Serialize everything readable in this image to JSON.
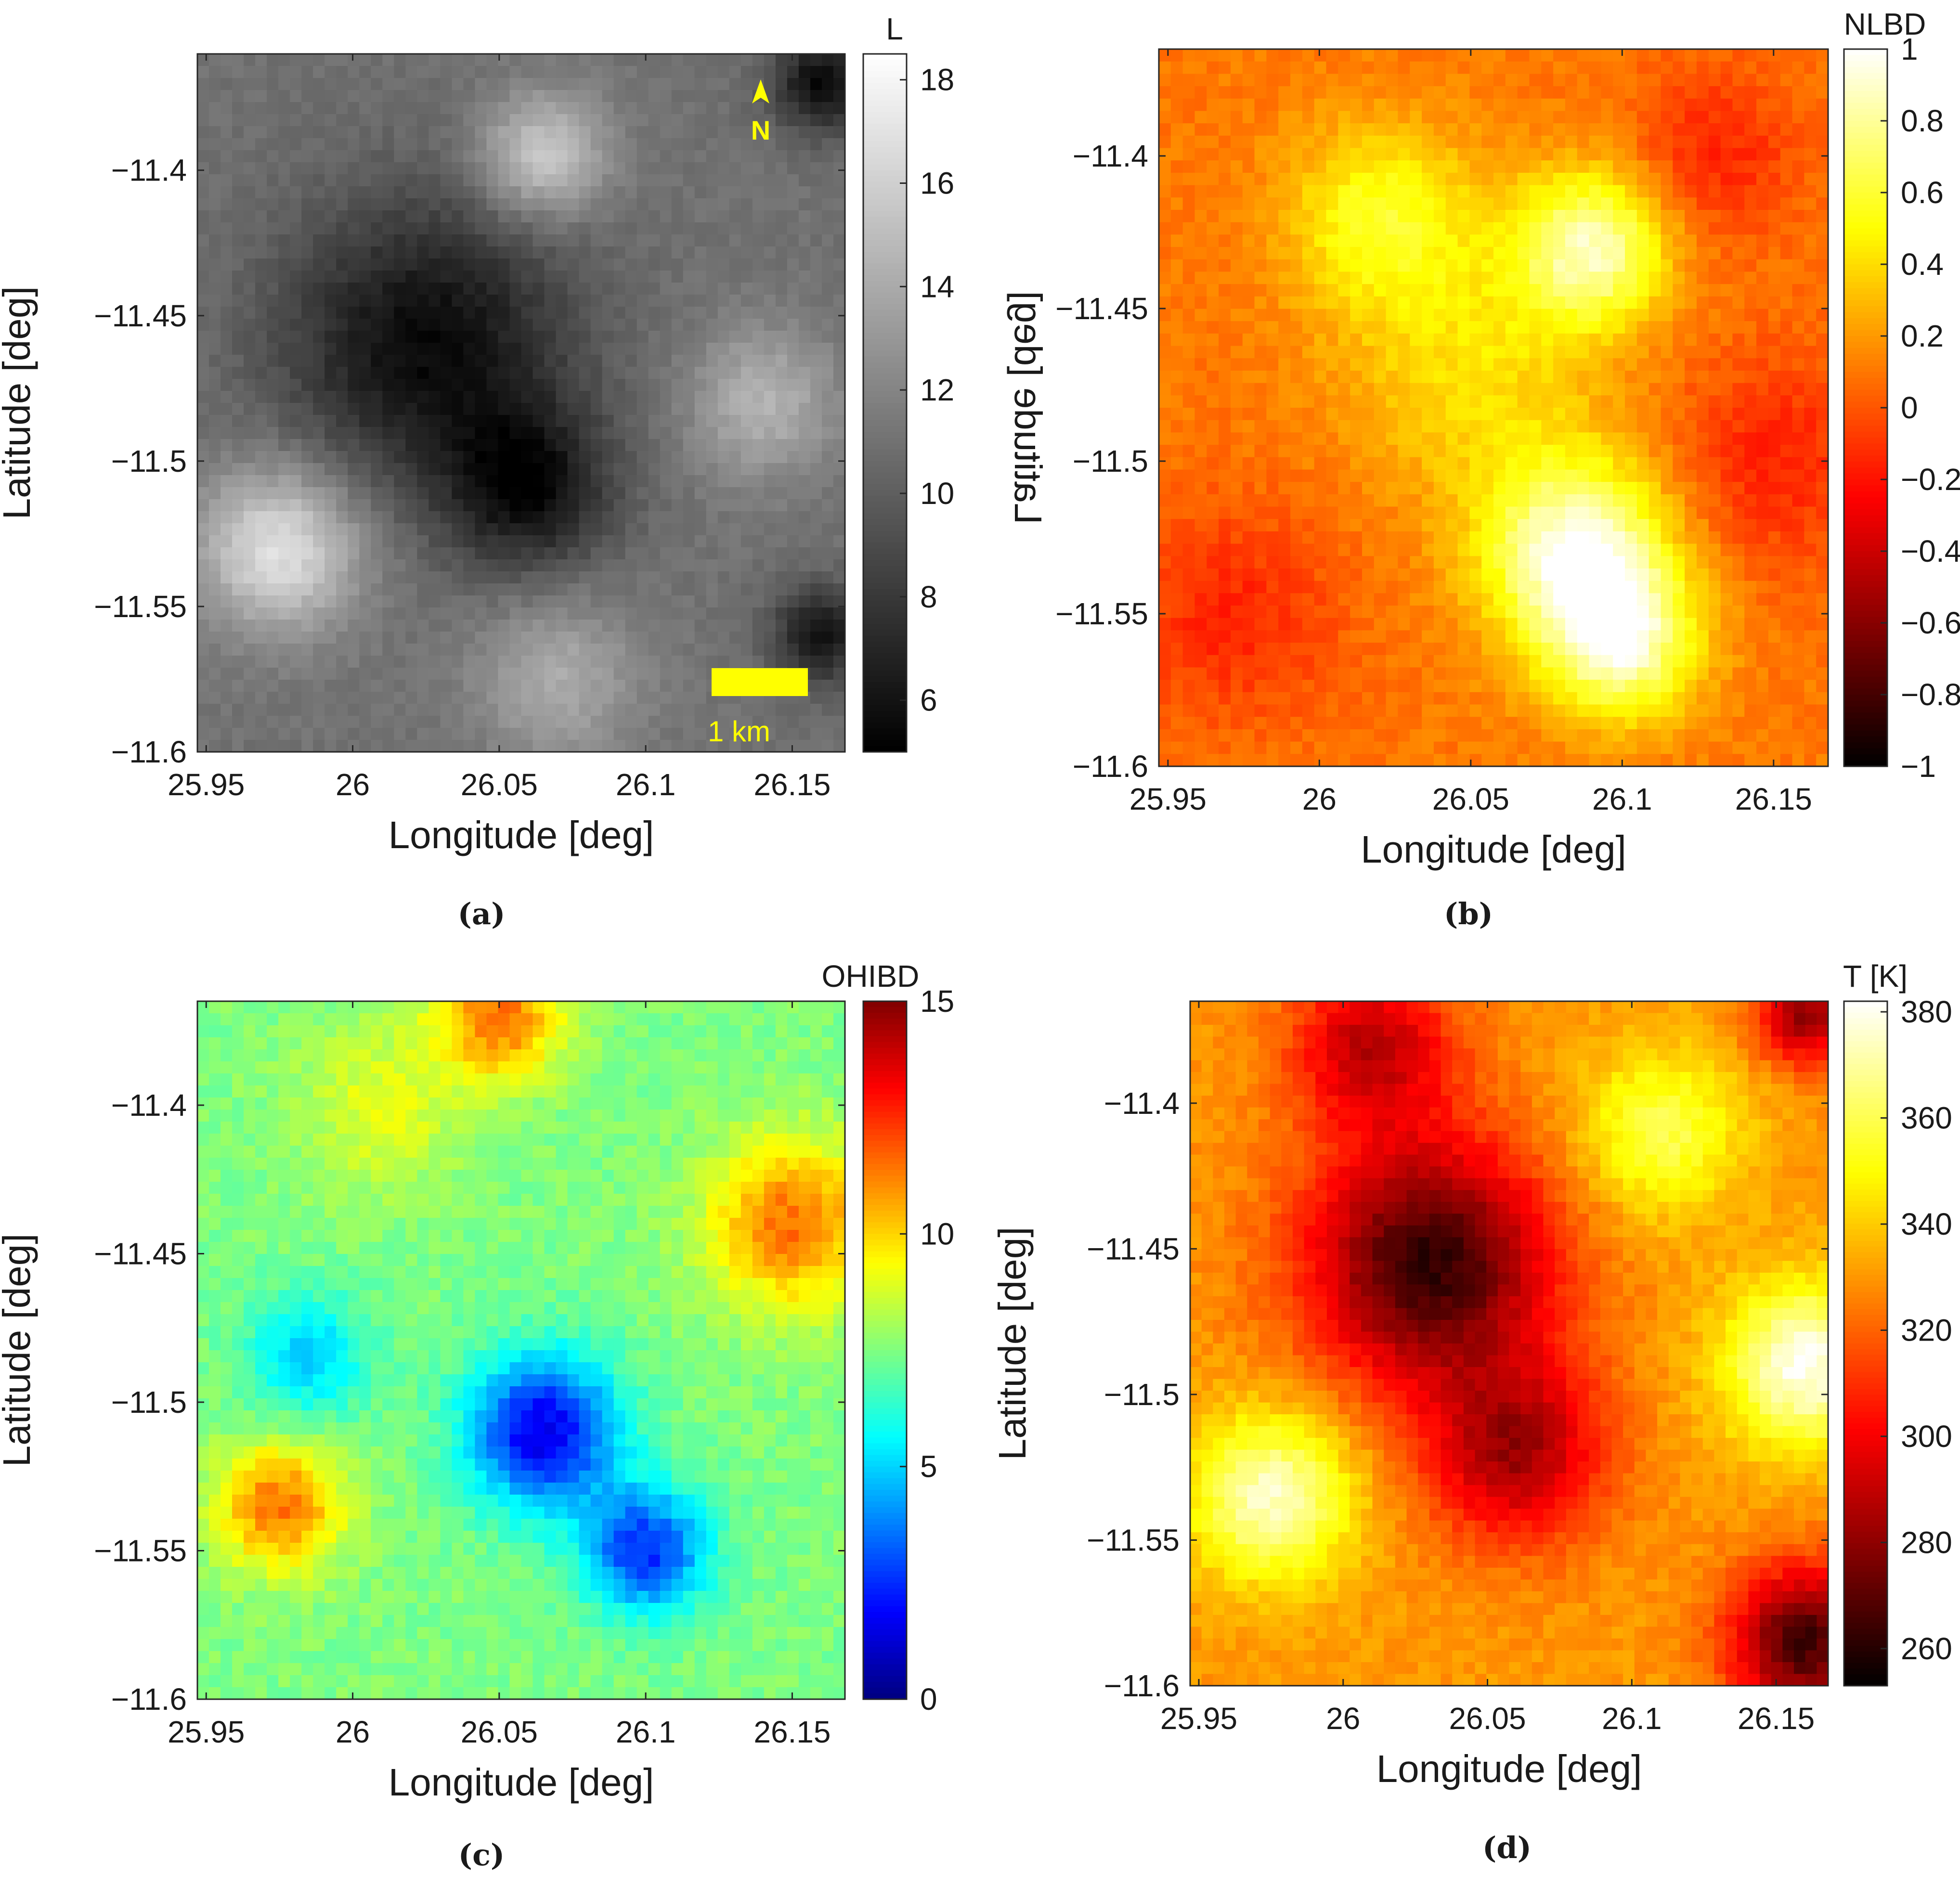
{
  "chart_data": [
    {
      "id": "a",
      "type": "heatmap",
      "subfigure_label": "(a)",
      "xlabel": "Longitude [deg]",
      "ylabel": "Latitude [deg]",
      "xlim": [
        25.947,
        26.168
      ],
      "ylim": [
        -11.6,
        -11.36
      ],
      "xticks": [
        25.95,
        26,
        26.05,
        26.1,
        26.15
      ],
      "xtick_labels": [
        "25.95",
        "26",
        "26.05",
        "26.1",
        "26.15"
      ],
      "yticks": [
        -11.4,
        -11.45,
        -11.5,
        -11.55,
        -11.6
      ],
      "ytick_labels": [
        "−11.4",
        "−11.45",
        "−11.5",
        "−11.55",
        "−11.6"
      ],
      "colorbar": {
        "title": "L",
        "colormap": "gray",
        "clim": [
          5,
          18.5
        ],
        "ticks": [
          6,
          8,
          10,
          12,
          14,
          16,
          18
        ],
        "tick_labels": [
          "6",
          "8",
          "10",
          "12",
          "14",
          "16",
          "18"
        ]
      },
      "features": [
        {
          "lon": 26.025,
          "lat": -11.46,
          "value": 5.5,
          "sigma": 0.035
        },
        {
          "lon": 26.06,
          "lat": -11.51,
          "value": 6.0,
          "sigma": 0.02
        },
        {
          "lon": 25.975,
          "lat": -11.53,
          "value": 17.0,
          "sigma": 0.02
        },
        {
          "lon": 26.065,
          "lat": -11.395,
          "value": 16.0,
          "sigma": 0.015
        },
        {
          "lon": 26.07,
          "lat": -11.575,
          "value": 14.0,
          "sigma": 0.02
        },
        {
          "lon": 26.14,
          "lat": -11.48,
          "value": 14.5,
          "sigma": 0.018
        },
        {
          "lon": 26.16,
          "lat": -11.37,
          "value": 5.5,
          "sigma": 0.012
        },
        {
          "lon": 26.16,
          "lat": -11.56,
          "value": 6.0,
          "sigma": 0.012
        }
      ],
      "annotations": {
        "north_arrow": "N",
        "scale_bar": "1 km"
      }
    },
    {
      "id": "b",
      "type": "heatmap",
      "subfigure_label": "(b)",
      "xlabel": "Longitude [deg]",
      "ylabel": "Latitude [deg]",
      "ylabel_mirrored": true,
      "xlim": [
        25.947,
        26.168
      ],
      "ylim": [
        -11.6,
        -11.365
      ],
      "xticks": [
        25.95,
        26,
        26.05,
        26.1,
        26.15
      ],
      "xtick_labels": [
        "25.95",
        "26",
        "26.05",
        "26.1",
        "26.15"
      ],
      "yticks": [
        -11.4,
        -11.45,
        -11.5,
        -11.55,
        -11.6
      ],
      "ytick_labels": [
        "−11.4",
        "−11.45",
        "−11.5",
        "−11.55",
        "−11.6"
      ],
      "colorbar": {
        "title": "NLBD",
        "colormap": "hot",
        "clim": [
          -1,
          1
        ],
        "ticks": [
          -1,
          -0.8,
          -0.6,
          -0.4,
          -0.2,
          0,
          0.2,
          0.4,
          0.6,
          0.8,
          1
        ],
        "tick_labels": [
          "−1",
          "−0.8",
          "−0.6",
          "−0.4",
          "−0.2",
          "0",
          "0.2",
          "0.4",
          "0.6",
          "0.8",
          "1"
        ]
      },
      "features": [
        {
          "lon": 26.085,
          "lat": -11.53,
          "value": 0.95,
          "sigma": 0.022
        },
        {
          "lon": 26.1,
          "lat": -11.56,
          "value": 0.8,
          "sigma": 0.018
        },
        {
          "lon": 26.09,
          "lat": -11.43,
          "value": 0.85,
          "sigma": 0.018
        },
        {
          "lon": 26.02,
          "lat": -11.42,
          "value": 0.55,
          "sigma": 0.022
        },
        {
          "lon": 26.05,
          "lat": -11.47,
          "value": 0.4,
          "sigma": 0.03
        },
        {
          "lon": 25.97,
          "lat": -11.55,
          "value": -0.15,
          "sigma": 0.025
        },
        {
          "lon": 26.13,
          "lat": -11.4,
          "value": -0.15,
          "sigma": 0.02
        },
        {
          "lon": 26.15,
          "lat": -11.5,
          "value": -0.15,
          "sigma": 0.025
        }
      ]
    },
    {
      "id": "c",
      "type": "heatmap",
      "subfigure_label": "(c)",
      "xlabel": "Longitude [deg]",
      "ylabel": "Latitude [deg]",
      "xlim": [
        25.947,
        26.168
      ],
      "ylim": [
        -11.6,
        -11.365
      ],
      "xticks": [
        25.95,
        26,
        26.05,
        26.1,
        26.15
      ],
      "xtick_labels": [
        "25.95",
        "26",
        "26.05",
        "26.1",
        "26.15"
      ],
      "yticks": [
        -11.4,
        -11.45,
        -11.5,
        -11.55,
        -11.6
      ],
      "ytick_labels": [
        "−11.4",
        "−11.45",
        "−11.5",
        "−11.55",
        "−11.6"
      ],
      "colorbar": {
        "title": "OHIBD",
        "colormap": "jet_reversed",
        "clim": [
          0,
          15
        ],
        "ticks": [
          0,
          5,
          10,
          15
        ],
        "tick_labels": [
          "0",
          "5",
          "10",
          "15"
        ]
      },
      "features": [
        {
          "lon": 26.065,
          "lat": -11.51,
          "value": 1.5,
          "sigma": 0.018
        },
        {
          "lon": 26.1,
          "lat": -11.55,
          "value": 2.5,
          "sigma": 0.015
        },
        {
          "lon": 25.985,
          "lat": -11.485,
          "value": 5.0,
          "sigma": 0.015
        },
        {
          "lon": 25.975,
          "lat": -11.535,
          "value": 11.5,
          "sigma": 0.015
        },
        {
          "lon": 26.15,
          "lat": -11.44,
          "value": 11.5,
          "sigma": 0.02
        },
        {
          "lon": 26.05,
          "lat": -11.37,
          "value": 11.5,
          "sigma": 0.015
        },
        {
          "lon": 26.01,
          "lat": -11.4,
          "value": 9.0,
          "sigma": 0.02
        }
      ]
    },
    {
      "id": "d",
      "type": "heatmap",
      "subfigure_label": "(d)",
      "xlabel": "Longitude [deg]",
      "ylabel": "Latitude [deg]",
      "xlim": [
        25.947,
        26.168
      ],
      "ylim": [
        -11.6,
        -11.365
      ],
      "xticks": [
        25.95,
        26,
        26.05,
        26.1,
        26.15
      ],
      "xtick_labels": [
        "25.95",
        "26",
        "26.05",
        "26.1",
        "26.15"
      ],
      "yticks": [
        -11.4,
        -11.45,
        -11.5,
        -11.55,
        -11.6
      ],
      "ytick_labels": [
        "−11.4",
        "−11.45",
        "−11.5",
        "−11.55",
        "−11.6"
      ],
      "colorbar": {
        "title": "T [K]",
        "colormap": "hot",
        "clim": [
          253,
          382
        ],
        "ticks": [
          260,
          280,
          300,
          320,
          340,
          360,
          380
        ],
        "tick_labels": [
          "260",
          "280",
          "300",
          "320",
          "340",
          "360",
          "380"
        ]
      },
      "features": [
        {
          "lon": 26.03,
          "lat": -11.455,
          "value": 262,
          "sigma": 0.03
        },
        {
          "lon": 26.06,
          "lat": -11.52,
          "value": 285,
          "sigma": 0.022
        },
        {
          "lon": 26.01,
          "lat": -11.38,
          "value": 290,
          "sigma": 0.02
        },
        {
          "lon": 26.16,
          "lat": -11.37,
          "value": 280,
          "sigma": 0.012
        },
        {
          "lon": 26.16,
          "lat": -11.585,
          "value": 265,
          "sigma": 0.018
        },
        {
          "lon": 25.975,
          "lat": -11.535,
          "value": 375,
          "sigma": 0.02
        },
        {
          "lon": 26.16,
          "lat": -11.49,
          "value": 380,
          "sigma": 0.02
        },
        {
          "lon": 26.11,
          "lat": -11.41,
          "value": 360,
          "sigma": 0.02
        }
      ]
    }
  ]
}
